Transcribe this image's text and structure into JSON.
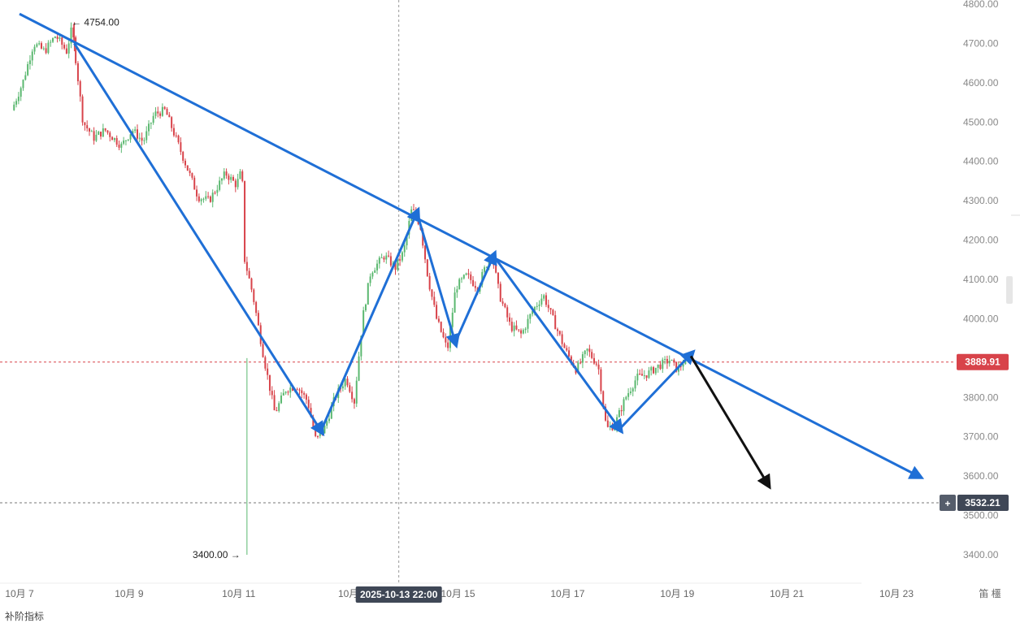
{
  "chart_data": {
    "type": "candlestick",
    "instrument_note": "",
    "price_axis": {
      "min": 3350,
      "max": 4800,
      "ticks": [
        4800,
        4700,
        4600,
        4500,
        4400,
        4300,
        4200,
        4100,
        4000,
        3900,
        3800,
        3700,
        3600,
        3500,
        3400
      ],
      "tick_labels": [
        "4800.00",
        "4700.00",
        "4600.00",
        "4500.00",
        "4400.00",
        "4300.00",
        "4200.00",
        "4100.00",
        "4000.00",
        "",
        "3800.00",
        "3700.00",
        "3600.00",
        "3500.00",
        "3400.00"
      ]
    },
    "time_axis": {
      "start_day": 6.9,
      "end_day": 24.0,
      "tick_days": [
        7,
        9,
        11,
        13,
        15,
        17,
        19,
        21,
        23
      ],
      "tick_labels": [
        "10月 7",
        "10月 9",
        "10月 11",
        "10月",
        "10月 15",
        "10月 17",
        "10月 19",
        "10月 21",
        "10月 23"
      ],
      "right_label": "笛 橿"
    },
    "crosshair": {
      "day": 13.92,
      "label": "2025-10-13 22:00"
    },
    "current_price": {
      "value": 3889.91,
      "label": "3889.91",
      "color": "#d8434a"
    },
    "hover_price": {
      "value": 3532.21,
      "label": "3532.21",
      "plus_symbol": "+"
    },
    "annotations": [
      {
        "text": "← 4754.00",
        "day": 7.95,
        "price": 4754
      },
      {
        "text": "3400.00 →",
        "day": 11.0,
        "price": 3400
      }
    ],
    "path_points": [
      {
        "day": 6.9,
        "price": 4530
      },
      {
        "day": 7.1,
        "price": 4600
      },
      {
        "day": 7.3,
        "price": 4700
      },
      {
        "day": 7.5,
        "price": 4680
      },
      {
        "day": 7.7,
        "price": 4720
      },
      {
        "day": 7.9,
        "price": 4680
      },
      {
        "day": 8.0,
        "price": 4740
      },
      {
        "day": 8.1,
        "price": 4620
      },
      {
        "day": 8.2,
        "price": 4500
      },
      {
        "day": 8.4,
        "price": 4460
      },
      {
        "day": 8.6,
        "price": 4480
      },
      {
        "day": 8.9,
        "price": 4440
      },
      {
        "day": 9.1,
        "price": 4480
      },
      {
        "day": 9.3,
        "price": 4450
      },
      {
        "day": 9.5,
        "price": 4520
      },
      {
        "day": 9.7,
        "price": 4530
      },
      {
        "day": 10.0,
        "price": 4420
      },
      {
        "day": 10.3,
        "price": 4310
      },
      {
        "day": 10.5,
        "price": 4300
      },
      {
        "day": 10.8,
        "price": 4370
      },
      {
        "day": 11.0,
        "price": 4340
      },
      {
        "day": 11.1,
        "price": 4380
      },
      {
        "day": 11.15,
        "price": 4150
      },
      {
        "day": 11.3,
        "price": 4060
      },
      {
        "day": 11.5,
        "price": 3900
      },
      {
        "day": 11.7,
        "price": 3760
      },
      {
        "day": 11.9,
        "price": 3820
      },
      {
        "day": 12.1,
        "price": 3830
      },
      {
        "day": 12.3,
        "price": 3790
      },
      {
        "day": 12.45,
        "price": 3690
      },
      {
        "day": 12.6,
        "price": 3720
      },
      {
        "day": 12.8,
        "price": 3800
      },
      {
        "day": 13.0,
        "price": 3850
      },
      {
        "day": 13.15,
        "price": 3790
      },
      {
        "day": 13.3,
        "price": 4000
      },
      {
        "day": 13.45,
        "price": 4120
      },
      {
        "day": 13.7,
        "price": 4160
      },
      {
        "day": 13.9,
        "price": 4130
      },
      {
        "day": 14.05,
        "price": 4170
      },
      {
        "day": 14.2,
        "price": 4280
      },
      {
        "day": 14.35,
        "price": 4240
      },
      {
        "day": 14.5,
        "price": 4100
      },
      {
        "day": 14.65,
        "price": 4000
      },
      {
        "day": 14.85,
        "price": 3920
      },
      {
        "day": 15.0,
        "price": 4080
      },
      {
        "day": 15.2,
        "price": 4110
      },
      {
        "day": 15.4,
        "price": 4080
      },
      {
        "day": 15.65,
        "price": 4170
      },
      {
        "day": 15.8,
        "price": 4060
      },
      {
        "day": 16.0,
        "price": 3980
      },
      {
        "day": 16.2,
        "price": 3960
      },
      {
        "day": 16.4,
        "price": 4020
      },
      {
        "day": 16.6,
        "price": 4060
      },
      {
        "day": 16.8,
        "price": 3990
      },
      {
        "day": 17.0,
        "price": 3920
      },
      {
        "day": 17.2,
        "price": 3870
      },
      {
        "day": 17.4,
        "price": 3920
      },
      {
        "day": 17.6,
        "price": 3880
      },
      {
        "day": 17.75,
        "price": 3720
      },
      {
        "day": 17.9,
        "price": 3730
      },
      {
        "day": 18.1,
        "price": 3800
      },
      {
        "day": 18.3,
        "price": 3850
      },
      {
        "day": 18.5,
        "price": 3860
      },
      {
        "day": 18.7,
        "price": 3880
      },
      {
        "day": 18.9,
        "price": 3895
      },
      {
        "day": 19.05,
        "price": 3870
      },
      {
        "day": 19.15,
        "price": 3890
      }
    ],
    "drawings": {
      "trend_line": {
        "from": {
          "day": 7.0,
          "price": 4775
        },
        "to": {
          "day": 23.4,
          "price": 3600
        },
        "color": "#1f6fd6"
      },
      "zigzag": [
        {
          "day": 8.0,
          "price": 4700
        },
        {
          "day": 12.5,
          "price": 3715
        },
        {
          "day": 14.25,
          "price": 4270
        },
        {
          "day": 14.95,
          "price": 3940
        },
        {
          "day": 15.65,
          "price": 4160
        },
        {
          "day": 17.95,
          "price": 3720
        },
        {
          "day": 19.25,
          "price": 3910
        }
      ],
      "zigzag_color": "#1f6fd6",
      "projection": {
        "from": {
          "day": 19.25,
          "price": 3905
        },
        "to": {
          "day": 20.65,
          "price": 3580
        },
        "color": "#111111"
      }
    },
    "colors": {
      "up": "#5bb870",
      "down": "#d8434a",
      "grid_dash": "#bbbbbb",
      "axis_text": "#888888"
    }
  },
  "bottom_cut_text": "补阶指标"
}
